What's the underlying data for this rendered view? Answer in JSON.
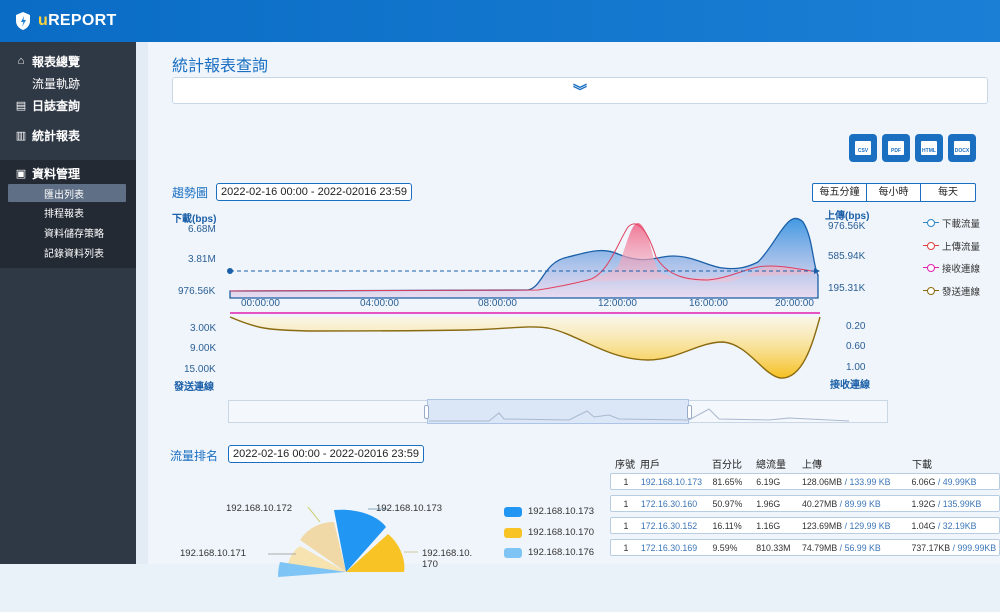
{
  "app": {
    "brand_u": "u",
    "brand_rest": "REPORT"
  },
  "sidebar": {
    "overview": "報表總覽",
    "traffic": "流量軌跡",
    "log_query": "日誌查詢",
    "stats_report": "統計報表",
    "data_mgmt": "資料管理",
    "sub_items": [
      "匯出列表",
      "排程報表",
      "資料儲存策略",
      "記錄資料列表"
    ]
  },
  "page": {
    "title": "統計報表查詢"
  },
  "exports": [
    "CSV",
    "PDF",
    "HTML",
    "DOCX"
  ],
  "trend": {
    "label": "趨勢圖",
    "date_range": "2022-02-16 00:00 - 2022-02016 23:59",
    "interval_options": [
      "每五分鐘",
      "每小時",
      "每天"
    ],
    "left_axis_title": "下載(bps)",
    "left_ticks": [
      "6.68M",
      "3.81M",
      "976.56K"
    ],
    "right_axis_title": "上傳(bps)",
    "right_ticks": [
      "976.56K",
      "585.94K",
      "195.31K"
    ],
    "time_ticks": [
      "00:00:00",
      "04:00:00",
      "08:00:00",
      "12:00:00",
      "16:00:00",
      "20:00:00"
    ],
    "lower_left_ticks": [
      "3.00K",
      "9.00K",
      "15.00K"
    ],
    "lower_left_title": "發送連線",
    "lower_right_ticks": [
      "0.20",
      "0.60",
      "1.00"
    ],
    "lower_right_title": "接收連線",
    "legend": [
      {
        "name": "下載流量",
        "color": "#2f86c8"
      },
      {
        "name": "上傳流量",
        "color": "#e04040"
      },
      {
        "name": "接收連線",
        "color": "#e020b0"
      },
      {
        "name": "發送連線",
        "color": "#8a6a10"
      }
    ]
  },
  "ranking": {
    "label": "流量排名",
    "date_range": "2022-02-16 00:00 - 2022-02016 23:59",
    "pie_labels": [
      "192.168.10.172",
      "192.168.10.173",
      "192.168.10.171",
      "192.168.10.\n170"
    ],
    "pie_legend": [
      {
        "name": "192.168.10.173",
        "color": "#2196f3"
      },
      {
        "name": "192.168.10.170",
        "color": "#f7c325"
      },
      {
        "name": "192.168.10.176",
        "color": "#7ec4f5"
      }
    ],
    "columns": [
      "序號",
      "用戶",
      "百分比",
      "總流量",
      "上傳",
      "下載"
    ],
    "rows": [
      {
        "idx": "1",
        "user": "192.168.10.173",
        "pct": "81.65%",
        "total": "6.19G",
        "up": "128.06MB",
        "up2": " / 133.99 KB",
        "down": "6.06G",
        "down2": " / 49.99KB"
      },
      {
        "idx": "1",
        "user": "172.16.30.160",
        "pct": "50.97%",
        "total": "1.96G",
        "up": "40.27MB",
        "up2": " / 89.99 KB",
        "down": "1.92G",
        "down2": " / 135.99KB"
      },
      {
        "idx": "1",
        "user": "172.16.30.152",
        "pct": "16.11%",
        "total": "1.16G",
        "up": "123.69MB",
        "up2": " / 129.99 KB",
        "down": "1.04G",
        "down2": " / 32.19KB"
      },
      {
        "idx": "1",
        "user": "172.16.30.169",
        "pct": "9.59%",
        "total": "810.33M",
        "up": "74.79MB",
        "up2": " / 56.99 KB",
        "down": "737.17KB",
        "down2": " / 999.99KB"
      }
    ]
  }
}
